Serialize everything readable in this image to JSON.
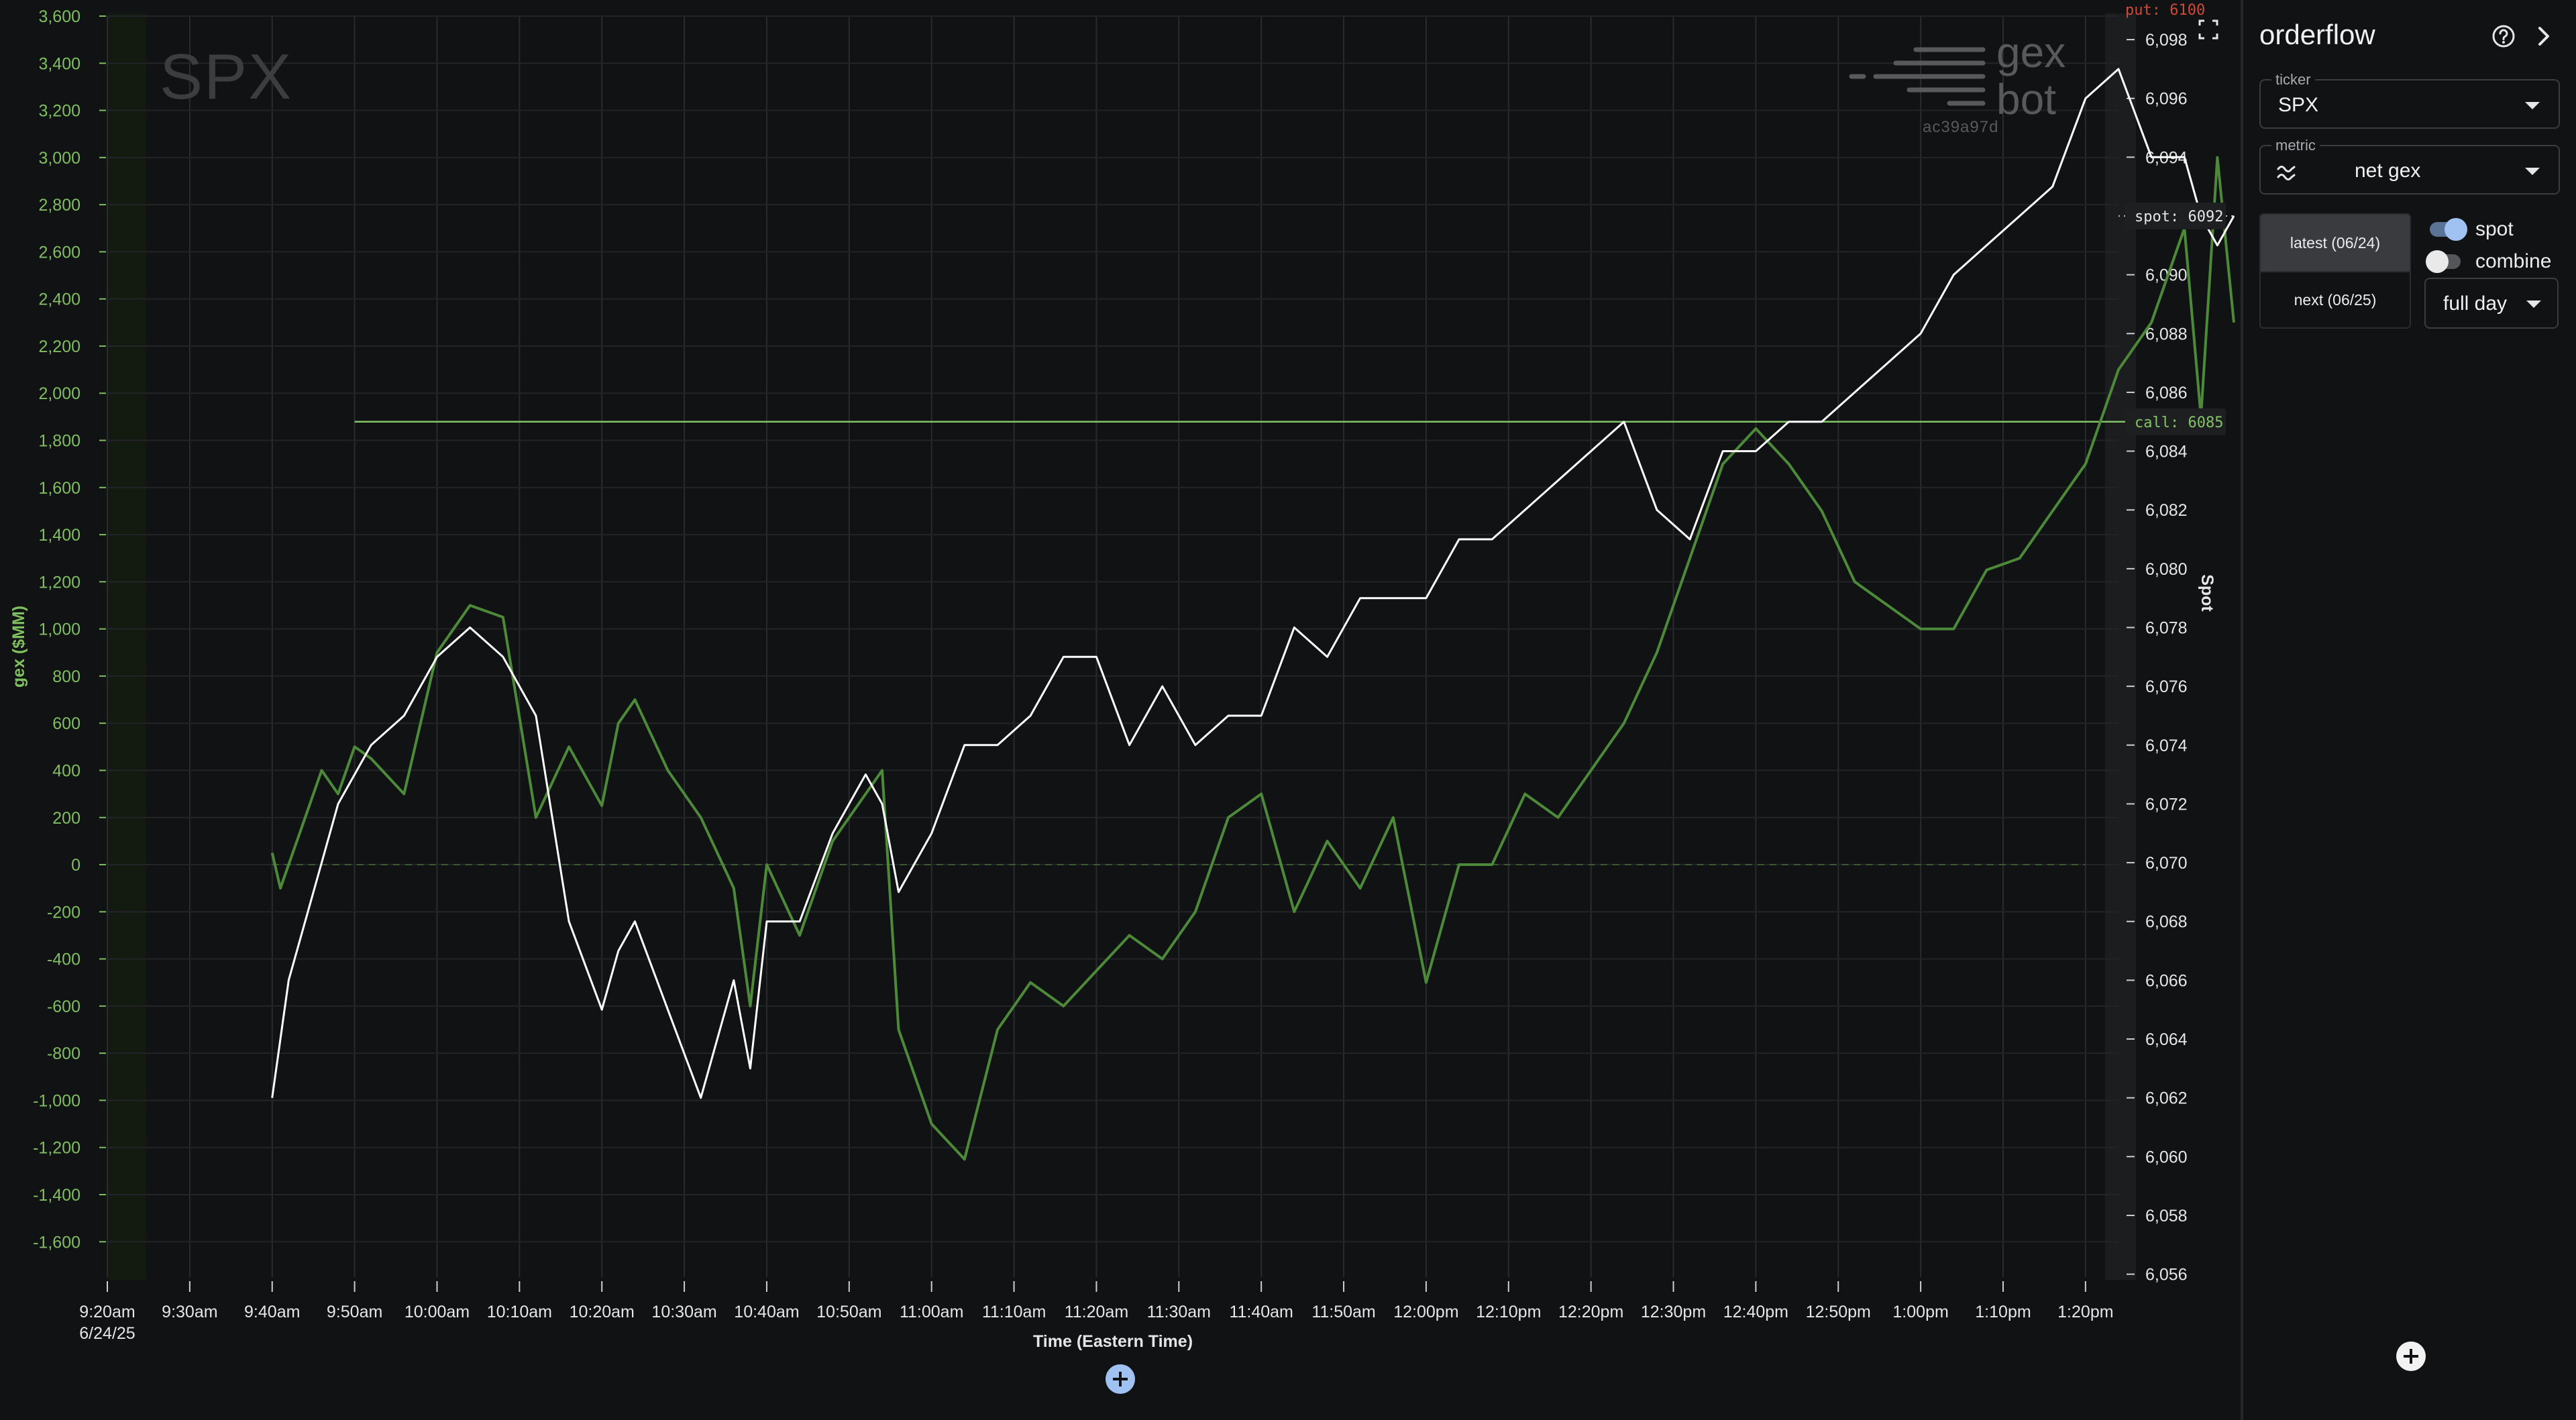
{
  "chart": {
    "ticker_watermark": "SPX",
    "brand": {
      "word1": "gex",
      "word2": "bot",
      "hash": "ac39a97d"
    },
    "xlabel": "Time (Eastern Time)",
    "ylabel_left": "gex ($MM)",
    "ylabel_right": "Spot",
    "date_label": "6/24/25",
    "markers": {
      "put": "put: 6100",
      "spot": "spot: 6092",
      "call": "call: 6085"
    }
  },
  "panel": {
    "title": "orderflow",
    "ticker_legend": "ticker",
    "ticker_value": "SPX",
    "metric_legend": "metric",
    "metric_value": "net gex",
    "date_latest": "latest (06/24)",
    "date_next": "next (06/25)",
    "toggle_spot": "spot",
    "toggle_combine": "combine",
    "range_value": "full day"
  },
  "colors": {
    "gex": "#4c8a3a",
    "spot": "#ffffff",
    "call": "#82c466",
    "put": "#c0392b",
    "axis_left": "#7fbf5f"
  },
  "chart_data": {
    "type": "line",
    "x_ticks": [
      "9:20am",
      "9:30am",
      "9:40am",
      "9:50am",
      "10:00am",
      "10:10am",
      "10:20am",
      "10:30am",
      "10:40am",
      "10:50am",
      "11:00am",
      "11:10am",
      "11:20am",
      "11:30am",
      "11:40am",
      "11:50am",
      "12:00pm",
      "12:10pm",
      "12:20pm",
      "12:30pm",
      "12:40pm",
      "12:50pm",
      "1:00pm",
      "1:10pm",
      "1:20pm"
    ],
    "y_left_ticks": [
      "3,600",
      "3,400",
      "3,200",
      "3,000",
      "2,800",
      "2,600",
      "2,400",
      "2,200",
      "2,000",
      "1,800",
      "1,600",
      "1,400",
      "1,200",
      "1,000",
      "800",
      "600",
      "400",
      "200",
      "0",
      "-200",
      "-400",
      "-600",
      "-800",
      "-1,000",
      "-1,200",
      "-1,400",
      "-1,600"
    ],
    "y_right_ticks": [
      "6,098",
      "6,096",
      "6,094",
      "6,092",
      "6,090",
      "6,088",
      "6,086",
      "6,084",
      "6,082",
      "6,080",
      "6,078",
      "6,076",
      "6,074",
      "6,072",
      "6,070",
      "6,068",
      "6,066",
      "6,064",
      "6,062",
      "6,060",
      "6,058",
      "6,056"
    ],
    "y_left_range": [
      -1750,
      3600
    ],
    "y_right_range": [
      6055.9,
      6098.8
    ],
    "x_range_minutes": [
      0,
      122
    ],
    "series": [
      {
        "name": "net gex",
        "axis": "left",
        "x": [
          10,
          10.5,
          11,
          12,
          13,
          14,
          15,
          16,
          18,
          20,
          22,
          24,
          26,
          28,
          30,
          31,
          32,
          34,
          36,
          38,
          39,
          40,
          42,
          44,
          46,
          47,
          48,
          50,
          52,
          54,
          56,
          58,
          60,
          62,
          64,
          66,
          68,
          70,
          72,
          74,
          76,
          78,
          80,
          82,
          84,
          86,
          88,
          90,
          92,
          94,
          96,
          98,
          100,
          102,
          104,
          106,
          108,
          110,
          112,
          114,
          116,
          118,
          120,
          122,
          124,
          126,
          127,
          128,
          129
        ],
        "y": [
          50,
          -100,
          0,
          200,
          400,
          300,
          500,
          450,
          300,
          900,
          1100,
          1050,
          200,
          500,
          250,
          600,
          700,
          400,
          200,
          -100,
          -600,
          0,
          -300,
          100,
          300,
          400,
          -700,
          -1100,
          -1250,
          -700,
          -500,
          -600,
          -450,
          -300,
          -400,
          -200,
          200,
          300,
          -200,
          100,
          -100,
          200,
          -500,
          0,
          0,
          300,
          200,
          400,
          600,
          900,
          1300,
          1700,
          1850,
          1700,
          1500,
          1200,
          1100,
          1000,
          1000,
          1250,
          1300,
          1500,
          1700,
          2100,
          2300,
          2700,
          1900,
          3000,
          2300
        ]
      },
      {
        "name": "spot",
        "axis": "right",
        "x": [
          10,
          11,
          12,
          13,
          14,
          15,
          16,
          18,
          20,
          22,
          24,
          26,
          28,
          30,
          31,
          32,
          34,
          36,
          38,
          39,
          40,
          42,
          44,
          46,
          47,
          48,
          50,
          52,
          54,
          56,
          58,
          60,
          62,
          64,
          66,
          68,
          70,
          72,
          74,
          76,
          78,
          80,
          82,
          84,
          86,
          88,
          90,
          92,
          94,
          96,
          98,
          100,
          102,
          104,
          106,
          108,
          110,
          112,
          114,
          116,
          118,
          120,
          122,
          124,
          126,
          127,
          128,
          129
        ],
        "y": [
          6062,
          6066,
          6068,
          6070,
          6072,
          6073,
          6074,
          6075,
          6077,
          6078,
          6077,
          6075,
          6068,
          6065,
          6067,
          6068,
          6065,
          6062,
          6066,
          6063,
          6068,
          6068,
          6071,
          6073,
          6072,
          6069,
          6071,
          6074,
          6074,
          6075,
          6077,
          6077,
          6074,
          6076,
          6074,
          6075,
          6075,
          6078,
          6077,
          6079,
          6079,
          6079,
          6081,
          6081,
          6082,
          6083,
          6084,
          6085,
          6082,
          6081,
          6084,
          6084,
          6085,
          6085,
          6086,
          6087,
          6088,
          6090,
          6091,
          6092,
          6093,
          6096,
          6097,
          6094,
          6094,
          6092,
          6091,
          6092
        ]
      }
    ],
    "hlines": [
      {
        "name": "call",
        "value": 6085,
        "axis": "right"
      },
      {
        "name": "spot",
        "value": 6092,
        "axis": "right"
      },
      {
        "name": "zero",
        "value": 0,
        "axis": "left"
      }
    ],
    "grid": true
  }
}
